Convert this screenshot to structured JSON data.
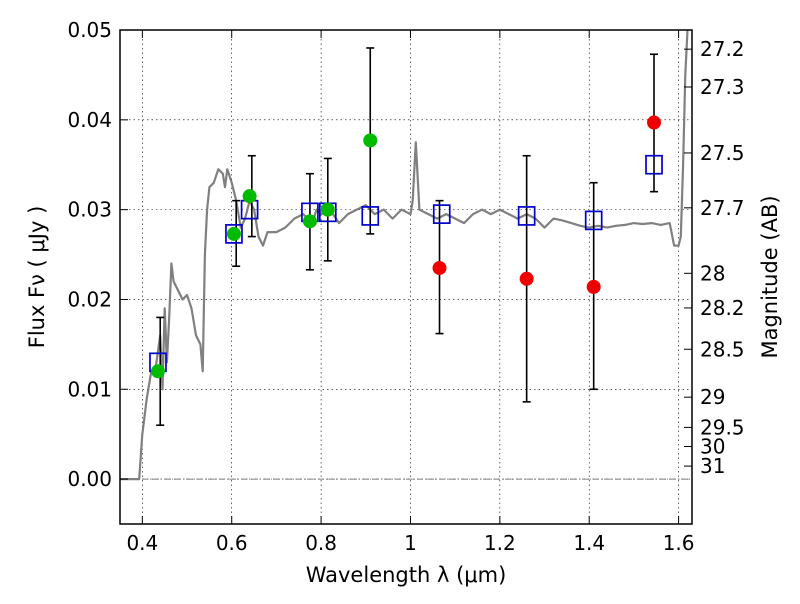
{
  "chart_data": {
    "type": "scatter",
    "x_axis": {
      "label": "Wavelength  λ (μm)",
      "range": [
        0.35,
        1.63
      ],
      "ticks": [
        0.4,
        0.6,
        0.8,
        1.0,
        1.2,
        1.4,
        1.6
      ],
      "tick_labels": [
        "0.4",
        "0.6",
        "0.8",
        "1",
        "1.2",
        "1.4",
        "1.6"
      ]
    },
    "y_axis": {
      "label": "Flux  Fν  ( μJy )",
      "range": [
        -0.005,
        0.05
      ],
      "ticks": [
        0.0,
        0.01,
        0.02,
        0.03,
        0.04,
        0.05
      ],
      "tick_labels": [
        "0.00",
        "0.01",
        "0.02",
        "0.03",
        "0.04",
        "0.05"
      ]
    },
    "y2_axis": {
      "label": "Magnitude (AB)",
      "ticks": [
        27.2,
        27.3,
        27.5,
        27.7,
        28,
        28.2,
        28.5,
        29,
        29.5,
        30,
        31
      ],
      "tick_labels": [
        "27.2",
        "27.3",
        "27.5",
        "27.7",
        "28",
        "28.2",
        "28.5",
        "29",
        "29.5",
        "30",
        "31"
      ]
    },
    "grid": true,
    "colors": {
      "model": "#808080",
      "model_photometry": "#0000cc",
      "detected": "#00bb00",
      "undetected": "#ee0000",
      "errorbar": "#000000",
      "zero_line": "#555555"
    },
    "series": [
      {
        "kind": "line",
        "points": [
          [
            0.35,
            0.0
          ],
          [
            0.38,
            0.0
          ],
          [
            0.393,
            0.0
          ],
          [
            0.4,
            0.005
          ],
          [
            0.41,
            0.009
          ],
          [
            0.42,
            0.012
          ],
          [
            0.43,
            0.0125
          ],
          [
            0.44,
            0.016
          ],
          [
            0.445,
            0.01
          ],
          [
            0.45,
            0.019
          ],
          [
            0.455,
            0.013
          ],
          [
            0.46,
            0.018
          ],
          [
            0.465,
            0.024
          ],
          [
            0.47,
            0.022
          ],
          [
            0.48,
            0.021
          ],
          [
            0.49,
            0.02
          ],
          [
            0.5,
            0.0205
          ],
          [
            0.51,
            0.019
          ],
          [
            0.52,
            0.016
          ],
          [
            0.53,
            0.015
          ],
          [
            0.535,
            0.012
          ],
          [
            0.54,
            0.025
          ],
          [
            0.545,
            0.03
          ],
          [
            0.55,
            0.0325
          ],
          [
            0.56,
            0.033
          ],
          [
            0.57,
            0.0345
          ],
          [
            0.58,
            0.034
          ],
          [
            0.585,
            0.0325
          ],
          [
            0.59,
            0.0345
          ],
          [
            0.6,
            0.033
          ],
          [
            0.61,
            0.031
          ],
          [
            0.62,
            0.028
          ],
          [
            0.63,
            0.029
          ],
          [
            0.64,
            0.031
          ],
          [
            0.65,
            0.03
          ],
          [
            0.66,
            0.027
          ],
          [
            0.67,
            0.026
          ],
          [
            0.68,
            0.0275
          ],
          [
            0.7,
            0.0275
          ],
          [
            0.72,
            0.028
          ],
          [
            0.74,
            0.029
          ],
          [
            0.76,
            0.0295
          ],
          [
            0.77,
            0.029
          ],
          [
            0.78,
            0.0285
          ],
          [
            0.79,
            0.03
          ],
          [
            0.8,
            0.0295
          ],
          [
            0.82,
            0.03
          ],
          [
            0.84,
            0.0285
          ],
          [
            0.86,
            0.0295
          ],
          [
            0.88,
            0.03
          ],
          [
            0.9,
            0.0305
          ],
          [
            0.92,
            0.0295
          ],
          [
            0.94,
            0.03
          ],
          [
            0.96,
            0.029
          ],
          [
            0.98,
            0.03
          ],
          [
            1.0,
            0.0295
          ],
          [
            1.005,
            0.031
          ],
          [
            1.012,
            0.0375
          ],
          [
            1.02,
            0.03
          ],
          [
            1.04,
            0.0295
          ],
          [
            1.06,
            0.029
          ],
          [
            1.08,
            0.0295
          ],
          [
            1.1,
            0.029
          ],
          [
            1.12,
            0.0285
          ],
          [
            1.14,
            0.0295
          ],
          [
            1.16,
            0.03
          ],
          [
            1.18,
            0.0295
          ],
          [
            1.2,
            0.03
          ],
          [
            1.22,
            0.0295
          ],
          [
            1.24,
            0.029
          ],
          [
            1.26,
            0.0295
          ],
          [
            1.28,
            0.029
          ],
          [
            1.3,
            0.028
          ],
          [
            1.32,
            0.029
          ],
          [
            1.34,
            0.0288
          ],
          [
            1.36,
            0.0285
          ],
          [
            1.38,
            0.0282
          ],
          [
            1.4,
            0.028
          ],
          [
            1.42,
            0.0282
          ],
          [
            1.44,
            0.028
          ],
          [
            1.46,
            0.0282
          ],
          [
            1.48,
            0.0283
          ],
          [
            1.5,
            0.0285
          ],
          [
            1.52,
            0.0284
          ],
          [
            1.54,
            0.0285
          ],
          [
            1.56,
            0.0283
          ],
          [
            1.58,
            0.0285
          ],
          [
            1.59,
            0.026
          ],
          [
            1.6,
            0.026
          ],
          [
            1.605,
            0.027
          ],
          [
            1.61,
            0.035
          ],
          [
            1.615,
            0.045
          ],
          [
            1.62,
            0.05
          ]
        ]
      },
      {
        "kind": "square",
        "points": [
          [
            0.435,
            0.013
          ],
          [
            0.605,
            0.0273
          ],
          [
            0.64,
            0.03
          ],
          [
            0.775,
            0.0297
          ],
          [
            0.815,
            0.0297
          ],
          [
            0.91,
            0.0293
          ],
          [
            1.07,
            0.0295
          ],
          [
            1.26,
            0.0293
          ],
          [
            1.41,
            0.0288
          ],
          [
            1.545,
            0.035
          ]
        ]
      },
      {
        "kind": "circle",
        "points": [
          [
            0.435,
            0.012
          ],
          [
            0.605,
            0.0273
          ],
          [
            0.64,
            0.0315
          ],
          [
            0.775,
            0.0287
          ],
          [
            0.815,
            0.03
          ],
          [
            0.91,
            0.0377
          ]
        ]
      },
      {
        "kind": "circle",
        "points": [
          [
            1.065,
            0.0235
          ],
          [
            1.26,
            0.0223
          ],
          [
            1.41,
            0.0214
          ],
          [
            1.545,
            0.0397
          ]
        ]
      },
      {
        "kind": "errorbars",
        "bars": [
          {
            "x": 0.44,
            "low": 0.006,
            "high": 0.018
          },
          {
            "x": 0.61,
            "low": 0.0237,
            "high": 0.031
          },
          {
            "x": 0.645,
            "low": 0.027,
            "high": 0.036
          },
          {
            "x": 0.775,
            "low": 0.0233,
            "high": 0.034
          },
          {
            "x": 0.815,
            "low": 0.0243,
            "high": 0.0357
          },
          {
            "x": 0.91,
            "low": 0.0273,
            "high": 0.048
          },
          {
            "x": 1.065,
            "low": 0.0162,
            "high": 0.031
          },
          {
            "x": 1.26,
            "low": 0.0086,
            "high": 0.036
          },
          {
            "x": 1.41,
            "low": 0.01,
            "high": 0.033
          },
          {
            "x": 1.545,
            "low": 0.032,
            "high": 0.0473
          }
        ]
      }
    ]
  }
}
